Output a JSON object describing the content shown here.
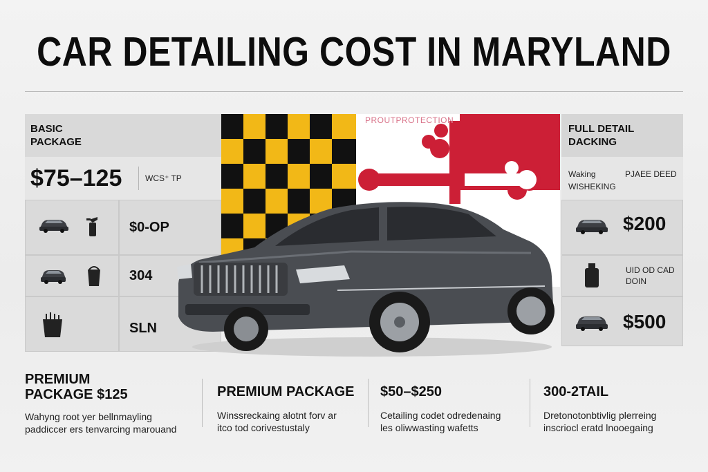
{
  "title": "CAR DETAILING COST IN MARYLAND",
  "watermark": "PROUTPROTECTION",
  "left": {
    "package_label_1": "BASIC",
    "package_label_2": "PACKAGE",
    "price": "$75–125",
    "price_note": "WCS⁺ TP",
    "rows": [
      {
        "icon": "car-icon",
        "tool_icon": "spray-bottle-icon",
        "value": "$0-OP"
      },
      {
        "icon": "car-icon",
        "tool_icon": "bucket-icon",
        "value": "304"
      },
      {
        "icon": "basket-icon",
        "tool_icon": "",
        "value": "SLN"
      }
    ]
  },
  "right": {
    "label_1": "FULL DETAIL",
    "label_2": "DACKING",
    "sub_1": "Waking",
    "sub_2": "PJAEE DEED",
    "sub_3": "WISHEKING",
    "rows": [
      {
        "icon": "car-icon",
        "value": "$200"
      },
      {
        "icon": "canister-icon",
        "value_1": "UID OD CAD",
        "value_2": "DOIN"
      },
      {
        "icon": "car-icon",
        "value": "$500"
      }
    ]
  },
  "bottom": [
    {
      "head_1": "PREMIUM",
      "head_2": "PACKAGE $125",
      "desc_1": "Wahyng root yer bellnmayling",
      "desc_2": "paddiccer ers tenvarcing marouand"
    },
    {
      "head_1": "PREMIUM   PACKAGE",
      "head_2": "",
      "desc_1": "Winssreckaing alotnt forv ar",
      "desc_2": "itco tod corivestustaly"
    },
    {
      "head_1": "$50–$250",
      "head_2": "",
      "desc_1": "Cetailing codet odredenaing",
      "desc_2": "les oliwwasting wafetts"
    },
    {
      "head_1": "300-2TAIL",
      "head_2": "",
      "desc_1": "Dretonotonbtivlig plerreing",
      "desc_2": "inscriocl eratd lnooegaing"
    }
  ],
  "colors": {
    "flag_black": "#111111",
    "flag_gold": "#f2b817",
    "flag_red": "#cc1f36",
    "flag_white": "#ffffff",
    "car_body": "#4a4d52"
  }
}
